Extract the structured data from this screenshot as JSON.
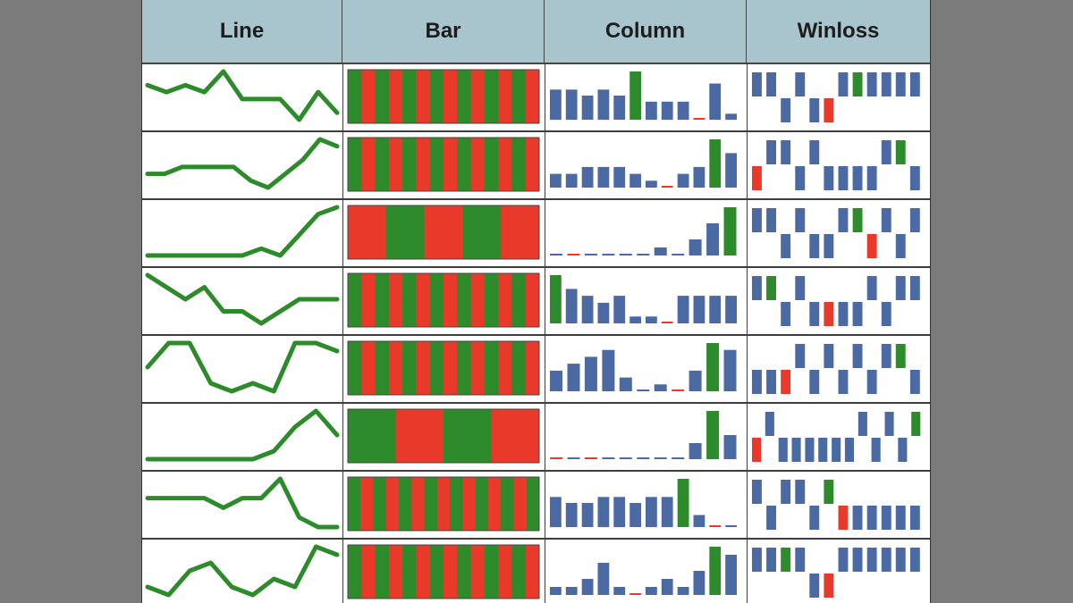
{
  "headers": [
    "Line",
    "Bar",
    "Column",
    "Winloss"
  ],
  "colors": {
    "line": "#2e8b2b",
    "positive": "#2e8b2b",
    "negative": "#e8392a",
    "neutral": "#4b6aa3",
    "header_bg": "#a8c4cc"
  },
  "chart_data": {
    "type": "sparkline-table",
    "columns": [
      "Line",
      "Bar",
      "Column",
      "Winloss"
    ],
    "rows": [
      {
        "line": [
          6,
          5,
          6,
          5,
          8,
          4,
          4,
          4,
          1,
          5,
          2
        ],
        "bar": [
          1,
          0,
          1,
          0,
          1,
          0,
          1,
          0,
          1,
          0,
          1,
          0,
          1,
          0
        ],
        "column": [
          5,
          5,
          4,
          5,
          4,
          8,
          3,
          3,
          3,
          0,
          6,
          1
        ],
        "column_colors": [
          "n",
          "n",
          "n",
          "n",
          "n",
          "g",
          "n",
          "n",
          "n",
          "r",
          "n",
          "n"
        ],
        "winloss": [
          1,
          1,
          -1,
          1,
          -1,
          -1,
          1,
          1,
          1,
          1,
          1,
          1
        ],
        "winloss_colors": [
          "n",
          "n",
          "n",
          "n",
          "n",
          "r",
          "n",
          "g",
          "n",
          "n",
          "n",
          "n"
        ]
      },
      {
        "line": [
          3,
          3,
          4,
          4,
          4,
          4,
          2,
          1,
          3,
          5,
          8,
          7
        ],
        "bar": [
          1,
          0,
          1,
          0,
          1,
          0,
          1,
          0,
          1,
          0,
          1,
          0,
          1,
          0
        ],
        "column": [
          2,
          2,
          3,
          3,
          3,
          2,
          1,
          0,
          2,
          3,
          7,
          5
        ],
        "column_colors": [
          "n",
          "n",
          "n",
          "n",
          "n",
          "n",
          "n",
          "r",
          "n",
          "n",
          "g",
          "n"
        ],
        "winloss": [
          -1,
          1,
          1,
          -1,
          1,
          -1,
          -1,
          -1,
          -1,
          1,
          1,
          -1
        ],
        "winloss_colors": [
          "r",
          "n",
          "n",
          "n",
          "n",
          "n",
          "n",
          "n",
          "n",
          "n",
          "g",
          "n"
        ]
      },
      {
        "line": [
          1,
          1,
          1,
          1,
          1,
          1,
          2,
          1,
          4,
          7,
          8
        ],
        "bar": [
          0,
          1,
          0,
          1,
          0
        ],
        "column": [
          0,
          0,
          0,
          0,
          0,
          0,
          1,
          0,
          2,
          4,
          6
        ],
        "column_colors": [
          "n",
          "r",
          "n",
          "n",
          "n",
          "n",
          "n",
          "n",
          "n",
          "n",
          "g"
        ],
        "winloss": [
          1,
          1,
          -1,
          1,
          -1,
          -1,
          1,
          1,
          -1,
          1,
          -1,
          1
        ],
        "winloss_colors": [
          "n",
          "n",
          "n",
          "n",
          "n",
          "n",
          "n",
          "g",
          "r",
          "n",
          "n",
          "n"
        ]
      },
      {
        "line": [
          8,
          7,
          6,
          7,
          5,
          5,
          4,
          5,
          6,
          6,
          6
        ],
        "bar": [
          1,
          0,
          1,
          0,
          1,
          0,
          1,
          0,
          1,
          0,
          1,
          0,
          1,
          0
        ],
        "column": [
          7,
          5,
          4,
          3,
          4,
          1,
          1,
          0,
          4,
          4,
          4,
          4
        ],
        "column_colors": [
          "g",
          "n",
          "n",
          "n",
          "n",
          "n",
          "n",
          "r",
          "n",
          "n",
          "n",
          "n"
        ],
        "winloss": [
          1,
          1,
          -1,
          1,
          -1,
          -1,
          -1,
          -1,
          1,
          -1,
          1,
          1
        ],
        "winloss_colors": [
          "n",
          "g",
          "n",
          "n",
          "n",
          "r",
          "n",
          "n",
          "n",
          "n",
          "n",
          "n"
        ]
      },
      {
        "line": [
          4,
          7,
          7,
          2,
          1,
          2,
          1,
          7,
          7,
          6
        ],
        "bar": [
          1,
          0,
          1,
          0,
          1,
          0,
          1,
          0,
          1,
          0,
          1,
          0,
          1,
          0
        ],
        "column": [
          3,
          4,
          5,
          6,
          2,
          0,
          1,
          0,
          3,
          7,
          6
        ],
        "column_colors": [
          "n",
          "n",
          "n",
          "n",
          "n",
          "n",
          "n",
          "r",
          "n",
          "g",
          "n"
        ],
        "winloss": [
          -1,
          -1,
          -1,
          1,
          -1,
          1,
          -1,
          1,
          -1,
          1,
          1,
          -1
        ],
        "winloss_colors": [
          "n",
          "n",
          "r",
          "n",
          "n",
          "n",
          "n",
          "n",
          "n",
          "n",
          "g",
          "n"
        ]
      },
      {
        "line": [
          1,
          1,
          1,
          1,
          1,
          1,
          2,
          5,
          7,
          4
        ],
        "bar": [
          1,
          0,
          1,
          0
        ],
        "column": [
          0,
          0,
          0,
          0,
          0,
          0,
          0,
          0,
          2,
          6,
          3
        ],
        "column_colors": [
          "r",
          "n",
          "r",
          "n",
          "n",
          "n",
          "n",
          "n",
          "n",
          "g",
          "n"
        ],
        "winloss": [
          -1,
          1,
          -1,
          -1,
          -1,
          -1,
          -1,
          -1,
          1,
          -1,
          1,
          -1,
          1
        ],
        "winloss_colors": [
          "r",
          "n",
          "n",
          "n",
          "n",
          "n",
          "n",
          "n",
          "n",
          "n",
          "n",
          "n",
          "g"
        ]
      },
      {
        "line": [
          4,
          4,
          4,
          4,
          3,
          4,
          4,
          6,
          2,
          1,
          1
        ],
        "bar": [
          1,
          0,
          1,
          0,
          1,
          0,
          1,
          0,
          1,
          0,
          1,
          0,
          1,
          0,
          1
        ],
        "column": [
          5,
          4,
          4,
          5,
          5,
          4,
          5,
          5,
          8,
          2,
          0,
          0
        ],
        "column_colors": [
          "n",
          "n",
          "n",
          "n",
          "n",
          "n",
          "n",
          "n",
          "g",
          "n",
          "r",
          "n"
        ],
        "winloss": [
          1,
          -1,
          1,
          1,
          -1,
          1,
          -1,
          -1,
          -1,
          -1,
          -1,
          -1
        ],
        "winloss_colors": [
          "n",
          "n",
          "n",
          "n",
          "n",
          "g",
          "r",
          "n",
          "n",
          "n",
          "n",
          "n"
        ]
      },
      {
        "line": [
          2,
          1,
          4,
          5,
          2,
          1,
          3,
          2,
          7,
          6
        ],
        "bar": [
          1,
          0,
          1,
          0,
          1,
          0,
          1,
          0,
          1,
          0,
          1,
          0,
          1,
          0
        ],
        "column": [
          1,
          1,
          2,
          4,
          1,
          0,
          1,
          2,
          1,
          3,
          6,
          5
        ],
        "column_colors": [
          "n",
          "n",
          "n",
          "n",
          "n",
          "r",
          "n",
          "n",
          "n",
          "n",
          "g",
          "n"
        ],
        "winloss": [
          1,
          1,
          1,
          1,
          -1,
          -1,
          1,
          1,
          1,
          1,
          1,
          1
        ],
        "winloss_colors": [
          "n",
          "n",
          "g",
          "n",
          "n",
          "r",
          "n",
          "n",
          "n",
          "n",
          "n",
          "n"
        ]
      }
    ]
  }
}
